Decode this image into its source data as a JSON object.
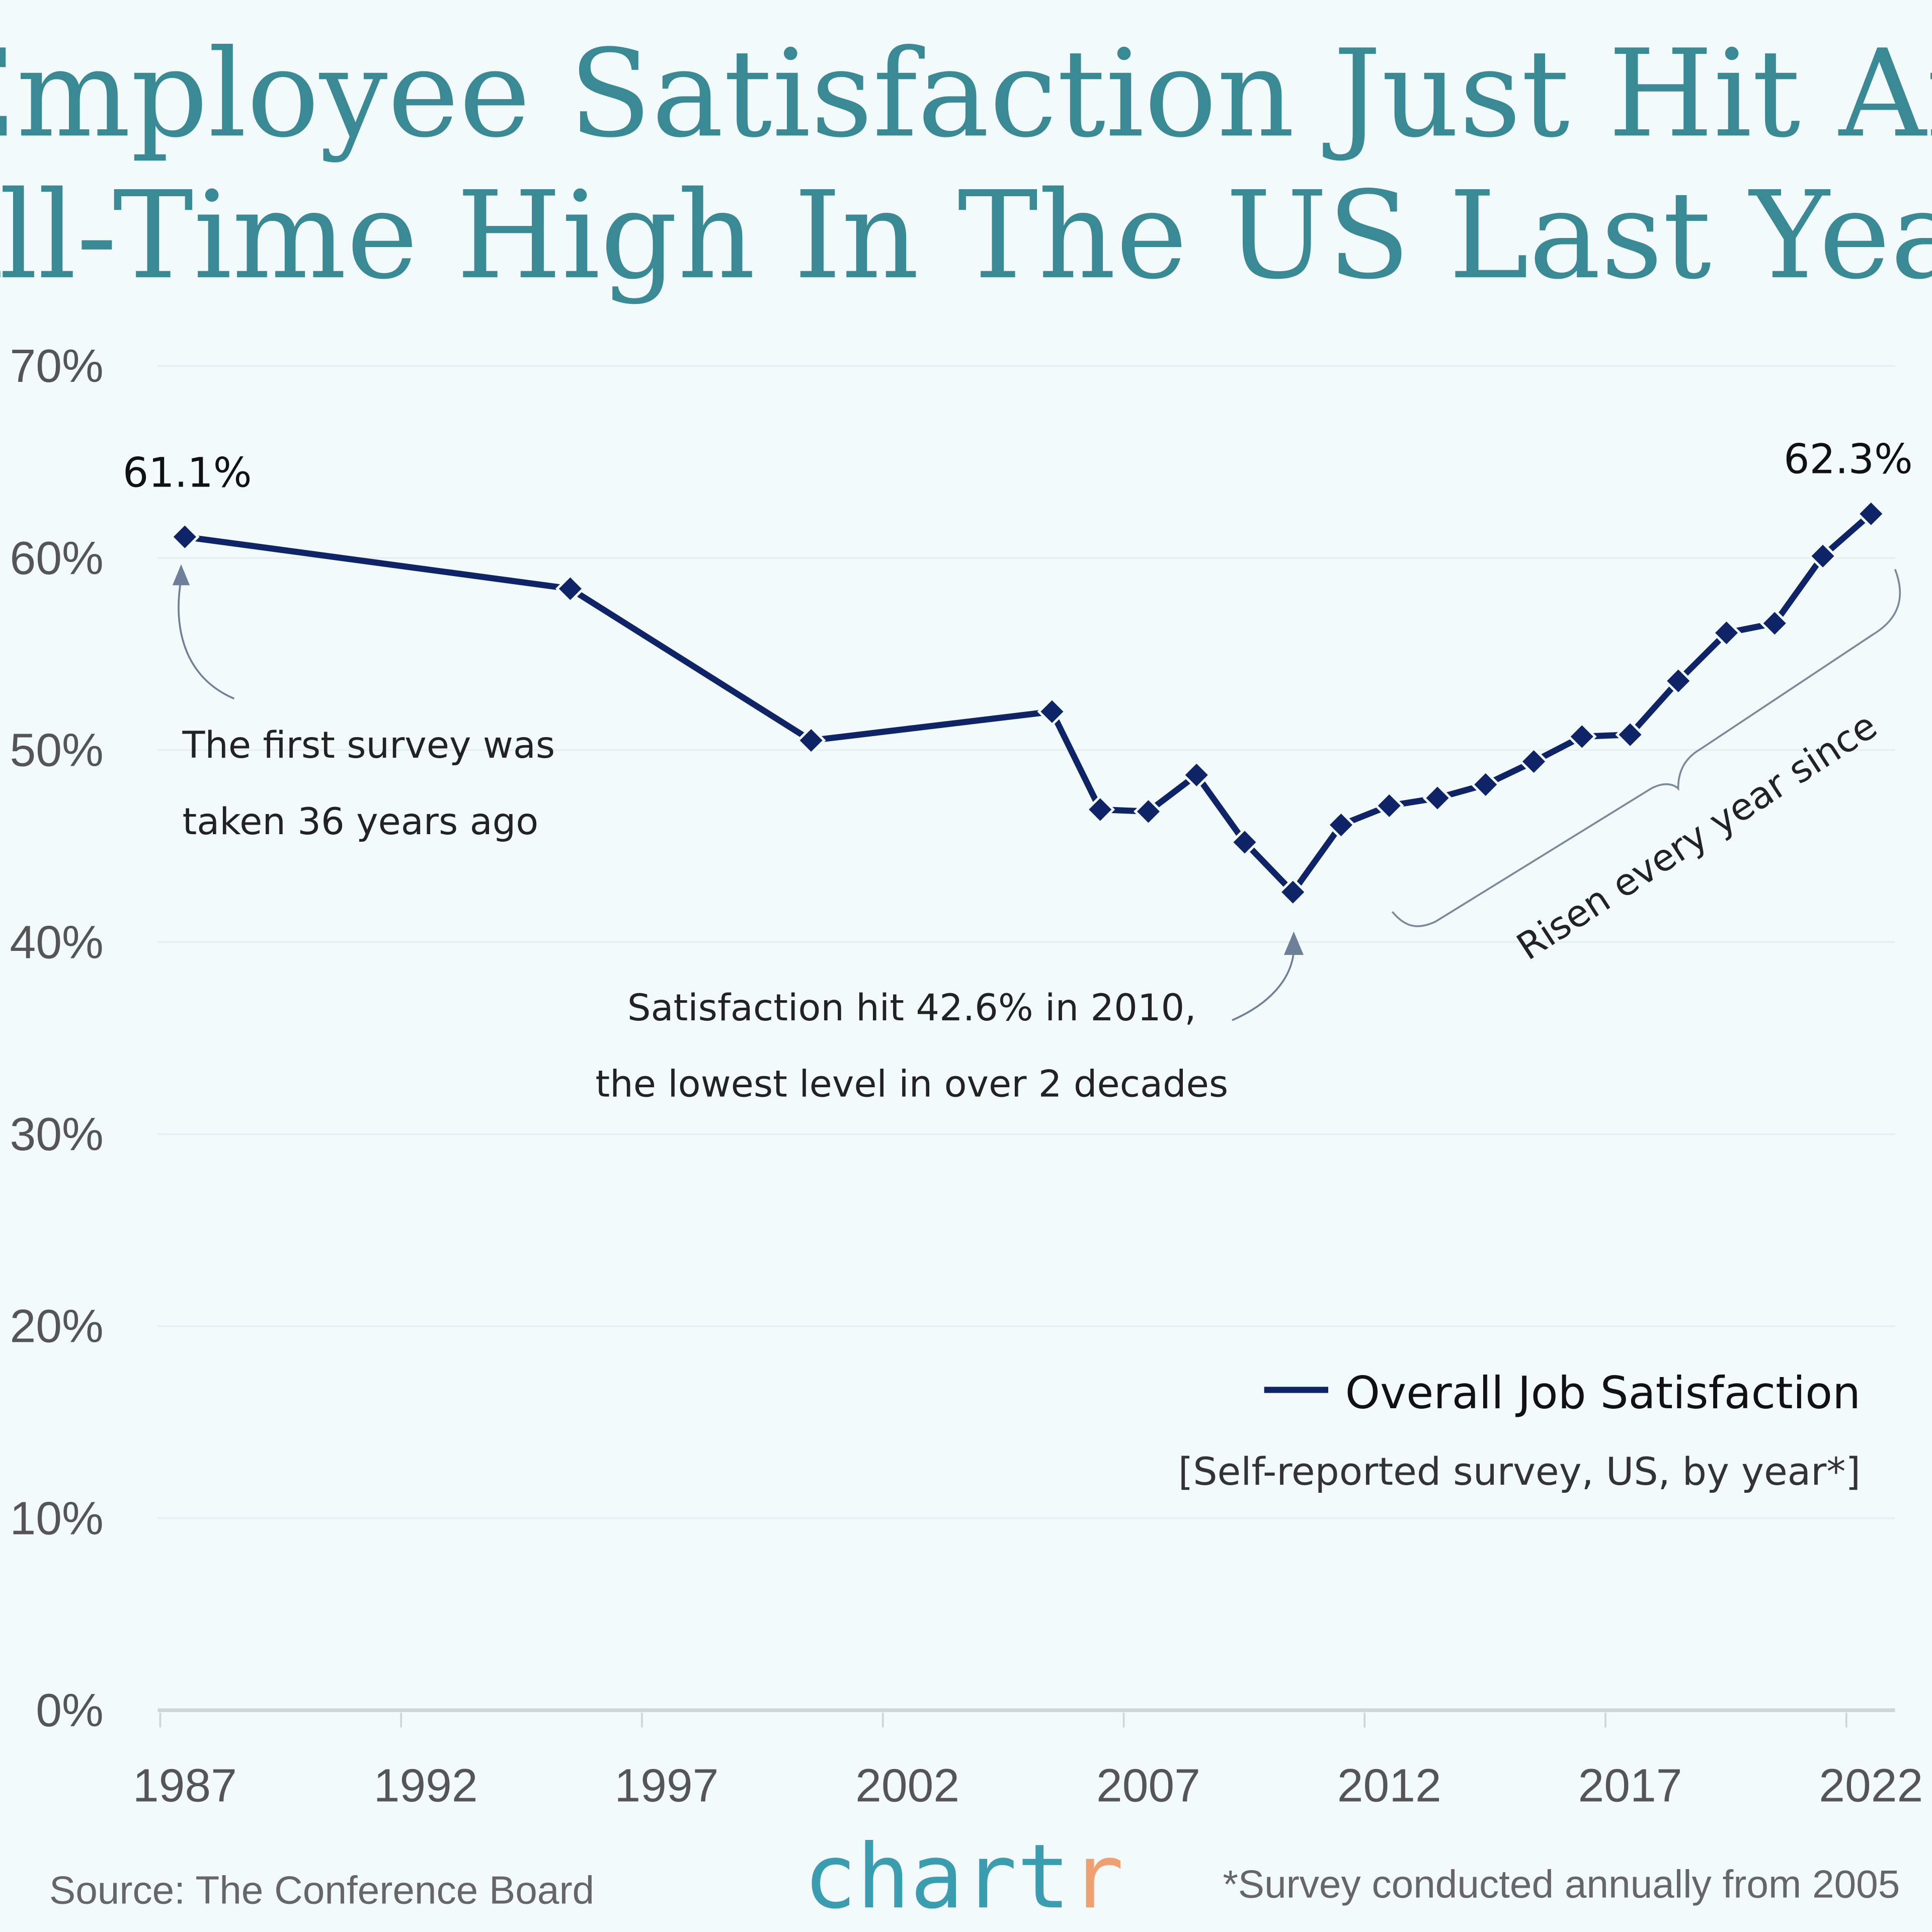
{
  "chart_data": {
    "type": "line",
    "title": "Employee Satisfaction Just Hit An All-Time High In The US Last Year",
    "title_lines": [
      "Employee Satisfaction Just Hit An",
      "All-Time High In The US Last Year"
    ],
    "x": [
      1987,
      1995,
      2000,
      2005,
      2006,
      2007,
      2008,
      2009,
      2010,
      2011,
      2012,
      2013,
      2014,
      2015,
      2016,
      2017,
      2018,
      2019,
      2020,
      2021,
      2022
    ],
    "series": [
      {
        "name": "Overall Job Satisfaction",
        "values": [
          61.1,
          58.4,
          50.5,
          52.0,
          46.9,
          46.8,
          48.7,
          45.2,
          42.6,
          46.1,
          47.1,
          47.5,
          48.2,
          49.4,
          50.7,
          50.8,
          53.6,
          56.1,
          56.6,
          60.1,
          62.3
        ],
        "color": "#0f2466"
      }
    ],
    "xticks": [
      "1987",
      "1992",
      "1997",
      "2002",
      "2007",
      "2012",
      "2017",
      "2022"
    ],
    "yticks": [
      "0%",
      "10%",
      "20%",
      "30%",
      "40%",
      "50%",
      "60%",
      "70%"
    ],
    "ylim": [
      0,
      70
    ],
    "grid": true,
    "legend_position": "bottom-right",
    "legend_subtitle": "[Self-reported survey, US, by year*]",
    "data_labels": {
      "first": "61.1%",
      "last": "62.3%"
    },
    "annotations": {
      "first_survey": [
        "The first survey was",
        "taken 36 years ago"
      ],
      "low": [
        "Satisfaction hit 42.6% in 2010,",
        "the lowest level in over 2 decades"
      ],
      "risen": "Risen every year since"
    }
  },
  "footer": {
    "source": "Source: The Conference Board",
    "logo": "chartr",
    "note": "*Survey conducted annually from 2005"
  },
  "colors": {
    "background": "#f3fafb",
    "title": "#3a8a95",
    "line": "#0f2466",
    "logo": "#3a9db0",
    "logo_accent": "#f0a070"
  }
}
